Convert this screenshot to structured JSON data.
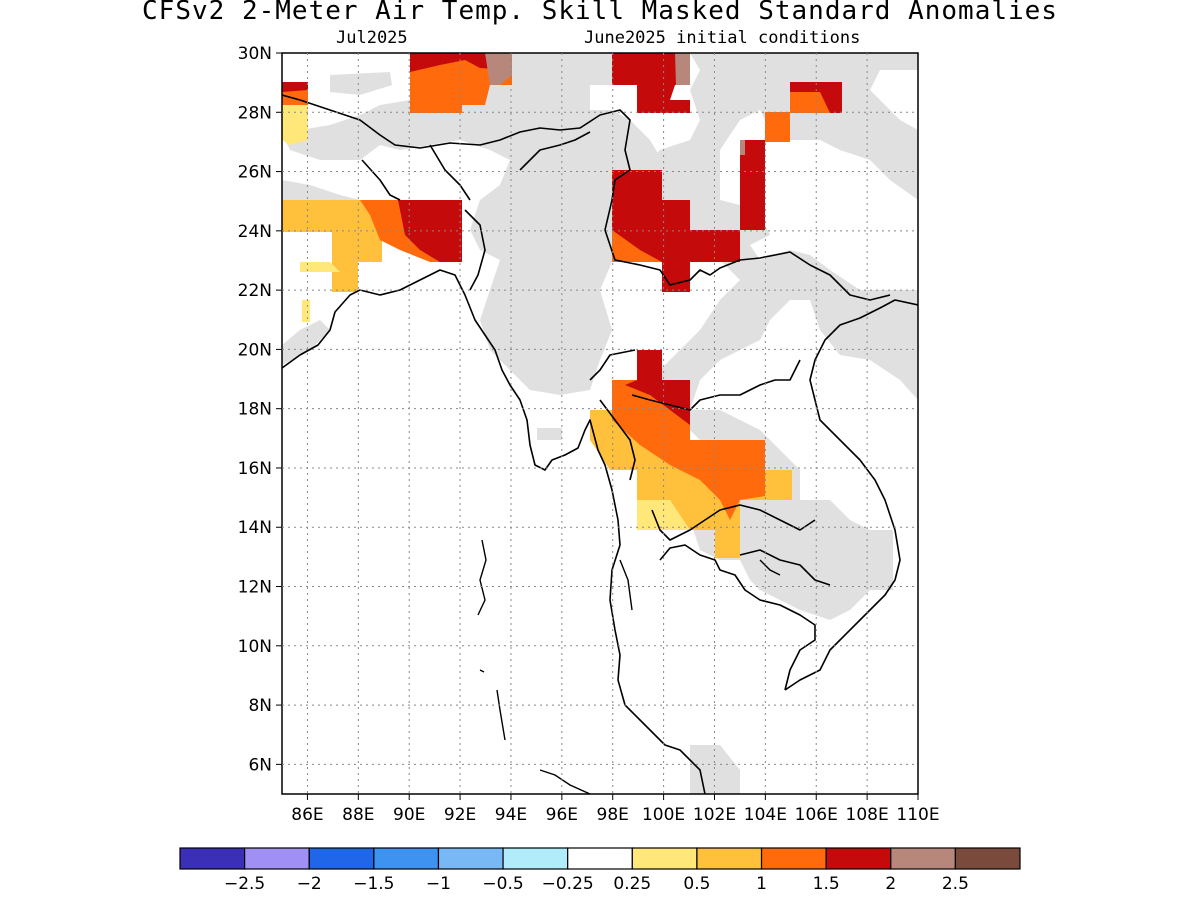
{
  "title": "CFSv2 2-Meter Air Temp. Skill Masked Standard Anomalies",
  "subtitle_left": "Jul2025",
  "subtitle_right": "June2025 initial conditions",
  "map": {
    "lat_labels": [
      "30N",
      "28N",
      "26N",
      "24N",
      "22N",
      "20N",
      "18N",
      "16N",
      "14N",
      "12N",
      "10N",
      "8N",
      "6N"
    ],
    "lon_labels": [
      "86E",
      "88E",
      "90E",
      "92E",
      "94E",
      "96E",
      "98E",
      "100E",
      "102E",
      "104E",
      "106E",
      "108E",
      "110E"
    ]
  },
  "colorbar": {
    "colors": [
      "#3b2fb8",
      "#a08ff5",
      "#1f66e8",
      "#3e93f0",
      "#78b8f5",
      "#b0ecfa",
      "#ffffff",
      "#ffe77a",
      "#ffc03c",
      "#ff6a0d",
      "#c40a0a",
      "#b8877c",
      "#7a4a3c"
    ],
    "labels": [
      "-2.5",
      "-2",
      "-1.5",
      "-1",
      "-0.5",
      "-0.25",
      "0.25",
      "0.5",
      "1",
      "1.5",
      "2",
      "2.5"
    ]
  },
  "legend_colors": {
    "masked_gray": "#e0e0e0",
    "level_0_5": "#ffe77a",
    "level_1": "#ffc03c",
    "level_1_5": "#ff6a0d",
    "level_2": "#c40a0a",
    "level_2_5": "#b8877c"
  }
}
